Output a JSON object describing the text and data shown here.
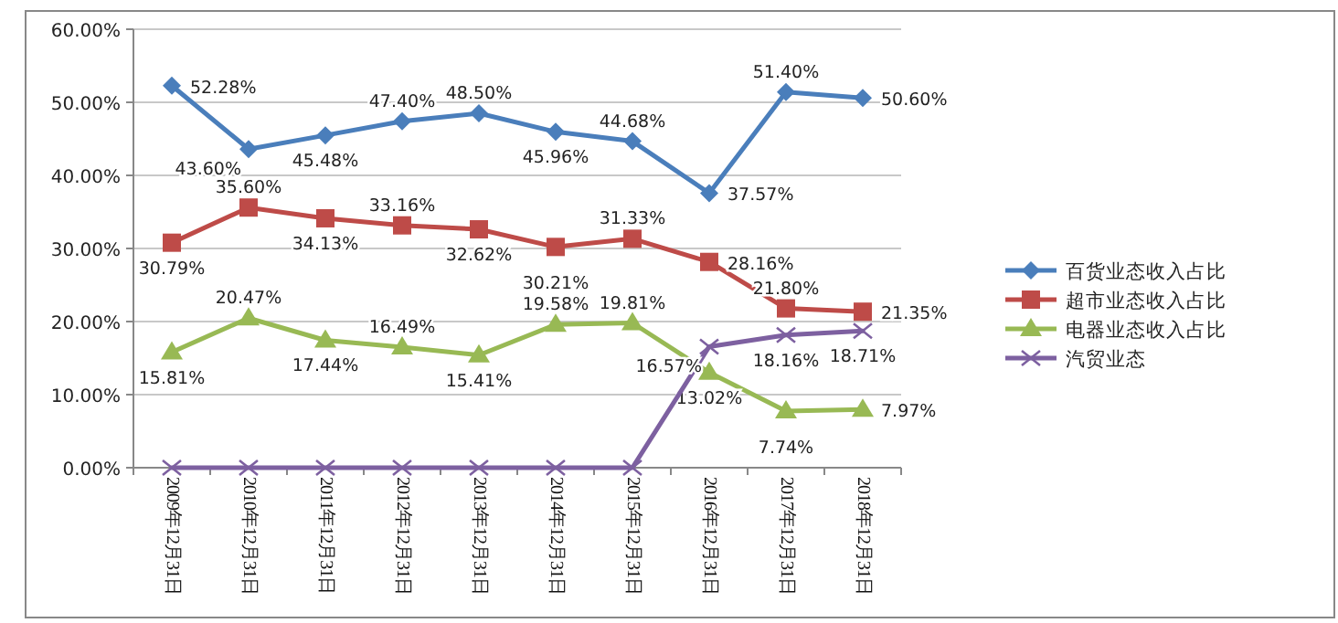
{
  "chart_data": {
    "type": "line",
    "categories": [
      "2009年12月31日",
      "2010年12月31日",
      "2011年12月31日",
      "2012年12月31日",
      "2013年12月31日",
      "2014年12月31日",
      "2015年12月31日",
      "2016年12月31日",
      "2017年12月31日",
      "2018年12月31日"
    ],
    "series": [
      {
        "name": "百货业态收入占比",
        "color": "#4a7ebb",
        "marker": "diamond",
        "values": [
          52.28,
          43.6,
          45.48,
          47.4,
          48.5,
          45.96,
          44.68,
          37.57,
          51.4,
          50.6
        ],
        "value_labels": [
          "52.28%",
          "43.60%",
          "45.48%",
          "47.40%",
          "48.50%",
          "45.96%",
          "44.68%",
          "37.57%",
          "51.40%",
          "50.60%"
        ]
      },
      {
        "name": "超市业态收入占比",
        "color": "#be4b48",
        "marker": "square",
        "values": [
          30.79,
          35.6,
          34.13,
          33.16,
          32.62,
          30.21,
          31.33,
          28.16,
          21.8,
          21.35
        ],
        "value_labels": [
          "30.79%",
          "35.60%",
          "34.13%",
          "33.16%",
          "32.62%",
          "30.21%",
          "31.33%",
          "28.16%",
          "21.80%",
          "21.35%"
        ]
      },
      {
        "name": "电器业态收入占比",
        "color": "#98b954",
        "marker": "triangle",
        "values": [
          15.81,
          20.47,
          17.44,
          16.49,
          15.41,
          19.58,
          19.81,
          13.02,
          7.74,
          7.97
        ],
        "value_labels": [
          "15.81%",
          "20.47%",
          "17.44%",
          "16.49%",
          "15.41%",
          "19.58%",
          "19.81%",
          "13.02%",
          "7.74%",
          "7.97%"
        ]
      },
      {
        "name": "汽贸业态",
        "color": "#7d60a0",
        "marker": "cross",
        "values": [
          0,
          0,
          0,
          0,
          0,
          0,
          0,
          16.57,
          18.16,
          18.71
        ],
        "value_labels": [
          null,
          null,
          null,
          null,
          null,
          null,
          null,
          "16.57%",
          "18.16%",
          "18.71%"
        ]
      }
    ],
    "ylim": [
      0,
      60
    ],
    "yticks": [
      {
        "value": 0,
        "label": "0.00%"
      },
      {
        "value": 10,
        "label": "10.00%"
      },
      {
        "value": 20,
        "label": "20.00%"
      },
      {
        "value": 30,
        "label": "30.00%"
      },
      {
        "value": 40,
        "label": "40.00%"
      },
      {
        "value": 50,
        "label": "50.00%"
      },
      {
        "value": 60,
        "label": "60.00%"
      }
    ],
    "grid": "y",
    "legend": "right"
  }
}
